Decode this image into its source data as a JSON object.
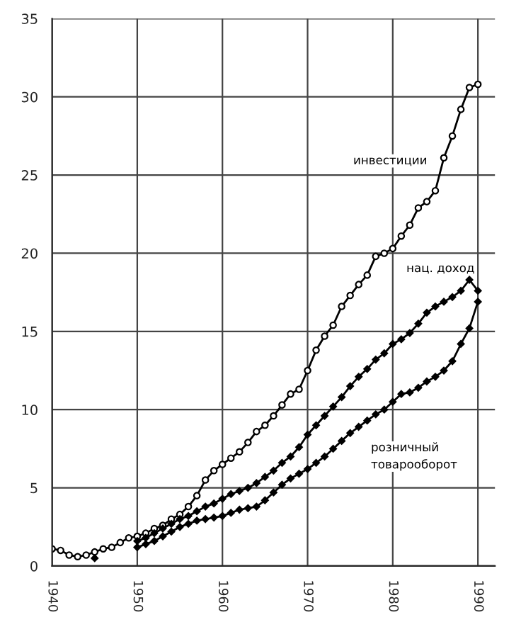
{
  "chart_data": {
    "type": "line",
    "xlim": [
      1940,
      1992
    ],
    "xticks": [
      1940,
      1950,
      1960,
      1970,
      1980,
      1990
    ],
    "ylim": [
      0,
      35
    ],
    "yticks": [
      0,
      5,
      10,
      15,
      20,
      25,
      30,
      35
    ],
    "grid": true,
    "legend": false,
    "series": [
      {
        "name": "инвестиции",
        "x": [
          1940,
          1941,
          1942,
          1943,
          1944,
          1945,
          1946,
          1947,
          1948,
          1949,
          1950,
          1951,
          1952,
          1953,
          1954,
          1955,
          1956,
          1957,
          1958,
          1959,
          1960,
          1961,
          1962,
          1963,
          1964,
          1965,
          1966,
          1967,
          1968,
          1969,
          1970,
          1971,
          1972,
          1973,
          1974,
          1975,
          1976,
          1977,
          1978,
          1979,
          1980,
          1981,
          1982,
          1983,
          1984,
          1985,
          1986,
          1987,
          1988,
          1989,
          1990
        ],
        "color": "#000000",
        "marker": "circle",
        "values": [
          1.1,
          1.0,
          0.7,
          0.6,
          0.7,
          0.9,
          1.1,
          1.2,
          1.5,
          1.8,
          1.9,
          2.1,
          2.4,
          2.6,
          3.0,
          3.3,
          3.8,
          4.5,
          5.5,
          6.1,
          6.5,
          6.9,
          7.3,
          7.9,
          8.6,
          9.0,
          9.6,
          10.3,
          11.0,
          11.3,
          12.5,
          13.8,
          14.7,
          15.4,
          16.6,
          17.3,
          18.0,
          18.6,
          19.8,
          20.0,
          20.3,
          21.1,
          21.8,
          22.9,
          23.3,
          24.0,
          26.1,
          27.5,
          29.2,
          30.6,
          30.8
        ]
      },
      {
        "name": "нац. доход",
        "x": [
          1950,
          1951,
          1952,
          1953,
          1954,
          1955,
          1956,
          1957,
          1958,
          1959,
          1960,
          1961,
          1962,
          1963,
          1964,
          1965,
          1966,
          1967,
          1968,
          1969,
          1970,
          1971,
          1972,
          1973,
          1974,
          1975,
          1976,
          1977,
          1978,
          1979,
          1980,
          1981,
          1982,
          1983,
          1984,
          1985,
          1986,
          1987,
          1988,
          1989,
          1990
        ],
        "color": "#000000",
        "marker": "diamond",
        "values": [
          1.6,
          1.8,
          2.1,
          2.4,
          2.7,
          3.0,
          3.2,
          3.5,
          3.8,
          4.0,
          4.3,
          4.6,
          4.8,
          5.0,
          5.3,
          5.7,
          6.1,
          6.6,
          7.0,
          7.6,
          8.4,
          9.0,
          9.6,
          10.2,
          10.8,
          11.5,
          12.1,
          12.6,
          13.2,
          13.6,
          14.2,
          14.5,
          14.9,
          15.5,
          16.2,
          16.6,
          16.9,
          17.2,
          17.6,
          18.3,
          17.6
        ]
      },
      {
        "name": "розничный\nтоварооборот",
        "x": [
          1945,
          1946,
          1947,
          1948,
          1949,
          1950,
          1951,
          1952,
          1953,
          1954,
          1955,
          1956,
          1957,
          1958,
          1959,
          1960,
          1961,
          1962,
          1963,
          1964,
          1965,
          1966,
          1967,
          1968,
          1969,
          1970,
          1971,
          1972,
          1973,
          1974,
          1975,
          1976,
          1977,
          1978,
          1979,
          1980,
          1981,
          1982,
          1983,
          1984,
          1985,
          1986,
          1987,
          1988,
          1989,
          1990
        ],
        "color": "#000000",
        "marker": "diamond",
        "values": [
          0.5,
          null,
          null,
          null,
          null,
          1.2,
          1.4,
          1.6,
          1.9,
          2.2,
          2.5,
          2.7,
          2.9,
          3.0,
          3.1,
          3.2,
          3.4,
          3.6,
          3.7,
          3.8,
          4.2,
          4.7,
          5.2,
          5.6,
          5.9,
          6.2,
          6.6,
          7.0,
          7.5,
          8.0,
          8.5,
          8.9,
          9.3,
          9.7,
          10.0,
          10.5,
          11.0,
          11.1,
          11.4,
          11.8,
          12.1,
          12.5,
          13.1,
          14.2,
          15.2,
          16.9
        ]
      }
    ]
  }
}
